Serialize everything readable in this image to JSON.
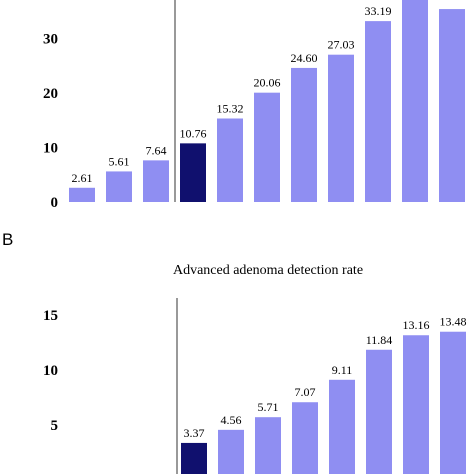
{
  "chart_data": [
    {
      "type": "bar",
      "title": "",
      "panel_label": "",
      "yticks": [
        "0",
        "10",
        "20",
        "30"
      ],
      "values": [
        2.61,
        5.61,
        7.64,
        10.76,
        15.32,
        20.06,
        24.6,
        27.03,
        33.19,
        38.1,
        35.4
      ],
      "value_labels": [
        "2.61",
        "5.61",
        "7.64",
        "10.76",
        "15.32",
        "20.06",
        "24.60",
        "27.03",
        "33.19",
        "",
        ""
      ],
      "highlight_index": 3,
      "ylim": [
        0,
        36
      ],
      "divider_after_index": 2,
      "colors": {
        "bar": "#8f8ef2",
        "highlight": "#10106e"
      }
    },
    {
      "type": "bar",
      "title": "Advanced adenoma detection rate",
      "panel_label": "B",
      "yticks": [
        "5",
        "10",
        "15"
      ],
      "values": [
        3.37,
        4.56,
        5.71,
        7.07,
        9.11,
        11.84,
        13.16,
        13.48
      ],
      "value_labels": [
        "3.37",
        "4.56",
        "5.71",
        "7.07",
        "9.11",
        "11.84",
        "13.16",
        "13.48"
      ],
      "highlight_index": 0,
      "ylim": [
        0,
        15
      ],
      "divider_after_index": -1,
      "colors": {
        "bar": "#8f8ef2",
        "highlight": "#10106e"
      }
    }
  ]
}
